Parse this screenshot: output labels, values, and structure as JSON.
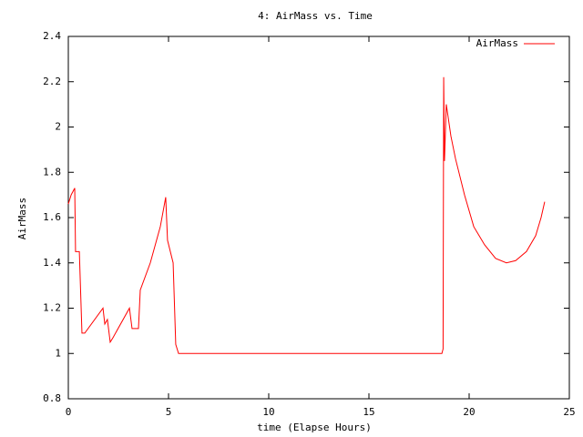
{
  "chart_data": {
    "type": "line",
    "title": "4: AirMass vs. Time",
    "x_label": "time (Elapse Hours)",
    "y_label": "AirMass",
    "xlim": [
      0,
      25
    ],
    "xticks": [
      0,
      5,
      10,
      15,
      20,
      25
    ],
    "ylim": [
      0.8,
      2.4
    ],
    "yticks": [
      0.8,
      1,
      1.2,
      1.4,
      1.6,
      1.8,
      2,
      2.2,
      2.4
    ],
    "legend": "top right",
    "series": [
      {
        "name": "AirMass",
        "color": "#ff0000",
        "x": [
          0,
          0.14,
          0.32,
          0.36,
          0.55,
          0.68,
          0.82,
          1.73,
          1.82,
          1.95,
          2.09,
          2.23,
          3.05,
          3.18,
          3.5,
          3.59,
          4.09,
          4.59,
          4.86,
          4.95,
          5.23,
          5.36,
          5.5,
          18.64,
          18.7,
          18.73,
          18.77,
          18.86,
          19.09,
          19.32,
          19.77,
          20.23,
          20.77,
          21.32,
          21.86,
          22.32,
          22.86,
          23.32,
          23.59,
          23.77
        ],
        "values": [
          1.66,
          1.7,
          1.73,
          1.45,
          1.45,
          1.09,
          1.09,
          1.2,
          1.13,
          1.15,
          1.05,
          1.07,
          1.2,
          1.11,
          1.11,
          1.28,
          1.4,
          1.56,
          1.69,
          1.5,
          1.4,
          1.04,
          1.0,
          1.0,
          1.02,
          2.22,
          1.85,
          2.1,
          1.96,
          1.86,
          1.7,
          1.56,
          1.48,
          1.42,
          1.4,
          1.41,
          1.45,
          1.52,
          1.6,
          1.67
        ]
      }
    ]
  }
}
